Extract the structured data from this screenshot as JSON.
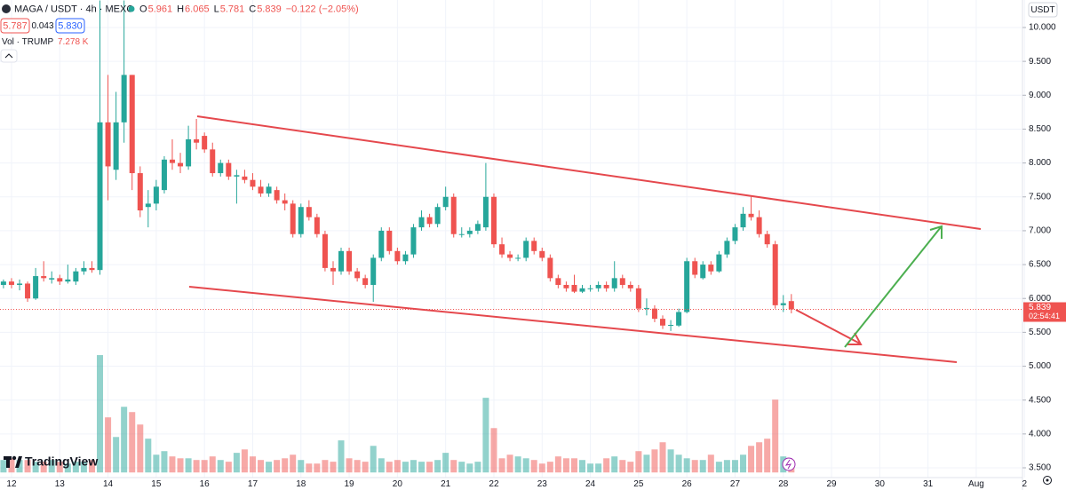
{
  "header": {
    "symbol": "MAGA / USDT · 4h · MEXC",
    "ohlc": [
      {
        "key": "O",
        "value": "5.961"
      },
      {
        "key": "H",
        "value": "6.065"
      },
      {
        "key": "L",
        "value": "5.781"
      },
      {
        "key": "C",
        "value": "5.839"
      }
    ],
    "change": "−0.122 (−2.05%)",
    "sell": "5.787",
    "spread": "0.043",
    "buy": "5.830",
    "volume_name": "Vol · TRUMP",
    "volume_value": "7.278 K",
    "currency": "USDT",
    "price_label": "5.839",
    "countdown": "02:54:41",
    "brand": "TradingView"
  },
  "chart_data": {
    "type": "candlestick",
    "x": [
      11.833,
      12,
      12.167,
      12.333,
      12.5,
      12.667,
      12.833,
      13,
      13.167,
      13.333,
      13.5,
      13.667,
      13.833,
      14,
      14.167,
      14.333,
      14.5,
      14.667,
      14.833,
      15,
      15.167,
      15.333,
      15.5,
      15.667,
      15.833,
      16,
      16.167,
      16.333,
      16.5,
      16.667,
      16.833,
      17,
      17.167,
      17.333,
      17.5,
      17.667,
      17.833,
      18,
      18.167,
      18.333,
      18.5,
      18.667,
      18.833,
      19,
      19.167,
      19.333,
      19.5,
      19.667,
      19.833,
      20,
      20.167,
      20.333,
      20.5,
      20.667,
      20.833,
      21,
      21.167,
      21.333,
      21.5,
      21.667,
      21.833,
      22,
      22.167,
      22.333,
      22.5,
      22.667,
      22.833,
      23,
      23.167,
      23.333,
      23.5,
      23.667,
      23.833,
      24,
      24.167,
      24.333,
      24.5,
      24.667,
      24.833,
      25,
      25.167,
      25.333,
      25.5,
      25.667,
      25.833,
      26,
      26.167,
      26.333,
      26.5,
      26.667,
      26.833,
      27,
      27.167,
      27.333,
      27.5,
      27.667,
      27.833,
      28,
      28.167
    ],
    "open": [
      6.2,
      6.25,
      6.2,
      6.22,
      6.0,
      6.33,
      6.28,
      6.3,
      6.25,
      6.25,
      6.4,
      6.45,
      6.42,
      8.6,
      7.9,
      8.6,
      9.3,
      7.85,
      7.35,
      7.4,
      7.6,
      8.05,
      8.0,
      7.95,
      8.35,
      8.4,
      8.2,
      7.85,
      8.0,
      7.8,
      7.8,
      7.75,
      7.65,
      7.55,
      7.6,
      7.45,
      7.4,
      6.95,
      7.35,
      7.2,
      6.95,
      6.45,
      6.4,
      6.7,
      6.4,
      6.3,
      6.2,
      6.6,
      7.0,
      6.7,
      6.55,
      6.65,
      7.05,
      7.2,
      7.1,
      7.35,
      7.5,
      6.95,
      6.95,
      7.0,
      7.05,
      7.5,
      6.8,
      6.65,
      6.6,
      6.6,
      6.85,
      6.7,
      6.6,
      6.3,
      6.2,
      6.2,
      6.1,
      6.15,
      6.15,
      6.2,
      6.15,
      6.3,
      6.2,
      6.15,
      5.85,
      5.85,
      5.7,
      5.6,
      5.6,
      5.8,
      6.55,
      6.3,
      6.5,
      6.4,
      6.65,
      6.85,
      7.05,
      7.25,
      7.2,
      6.95,
      6.8,
      5.9,
      5.961
    ],
    "high": [
      6.28,
      6.3,
      6.28,
      6.25,
      6.45,
      6.55,
      6.4,
      6.35,
      6.5,
      6.45,
      6.55,
      6.55,
      10.4,
      9.3,
      9.05,
      10.4,
      9.3,
      7.95,
      7.6,
      7.75,
      8.1,
      8.35,
      8.15,
      8.55,
      8.65,
      8.45,
      8.3,
      8.05,
      8.05,
      7.9,
      7.9,
      7.85,
      7.75,
      7.7,
      7.65,
      7.55,
      7.45,
      7.4,
      7.45,
      7.25,
      7.0,
      6.55,
      6.75,
      6.75,
      6.45,
      6.35,
      6.65,
      7.05,
      7.05,
      6.75,
      6.7,
      7.1,
      7.3,
      7.25,
      7.4,
      7.65,
      7.55,
      7.05,
      7.05,
      7.15,
      8.0,
      7.55,
      6.9,
      6.7,
      6.65,
      6.9,
      6.9,
      6.75,
      6.65,
      6.35,
      6.25,
      6.35,
      6.2,
      6.2,
      6.25,
      6.25,
      6.55,
      6.35,
      6.25,
      6.2,
      6.0,
      5.9,
      5.75,
      5.68,
      5.85,
      6.6,
      6.6,
      6.55,
      6.55,
      6.7,
      6.9,
      7.1,
      7.35,
      7.5,
      7.3,
      7.0,
      6.85,
      6.05,
      6.065
    ],
    "low": [
      6.15,
      6.15,
      6.12,
      5.95,
      5.98,
      6.25,
      6.22,
      6.2,
      6.22,
      6.2,
      6.35,
      6.38,
      6.35,
      7.45,
      7.75,
      8.3,
      7.6,
      7.2,
      7.05,
      7.3,
      7.55,
      7.9,
      7.85,
      7.9,
      8.2,
      8.15,
      7.8,
      7.8,
      7.75,
      7.4,
      7.7,
      7.6,
      7.5,
      7.5,
      7.4,
      7.3,
      6.9,
      6.9,
      7.15,
      6.9,
      6.4,
      6.2,
      6.35,
      6.35,
      6.25,
      6.15,
      5.95,
      6.55,
      6.65,
      6.5,
      6.5,
      6.6,
      7.0,
      7.05,
      7.05,
      7.3,
      6.9,
      6.9,
      6.9,
      6.95,
      7.0,
      6.75,
      6.6,
      6.55,
      6.55,
      6.55,
      6.65,
      6.55,
      6.25,
      6.15,
      6.1,
      6.08,
      6.08,
      6.1,
      6.1,
      6.1,
      6.1,
      6.15,
      6.1,
      5.8,
      5.75,
      5.65,
      5.55,
      5.52,
      5.58,
      5.78,
      6.3,
      6.28,
      6.35,
      6.38,
      6.6,
      6.8,
      7.0,
      7.15,
      6.9,
      6.75,
      5.85,
      5.8,
      5.781
    ],
    "close": [
      6.25,
      6.2,
      6.22,
      6.0,
      6.33,
      6.3,
      6.3,
      6.25,
      6.28,
      6.4,
      6.45,
      6.42,
      8.6,
      7.95,
      8.6,
      9.3,
      7.85,
      7.3,
      7.4,
      7.65,
      8.05,
      8.0,
      7.95,
      8.35,
      8.3,
      8.2,
      7.85,
      8.0,
      7.8,
      7.82,
      7.75,
      7.65,
      7.55,
      7.65,
      7.45,
      7.4,
      6.95,
      7.35,
      7.2,
      6.95,
      6.45,
      6.4,
      6.7,
      6.4,
      6.3,
      6.2,
      6.6,
      7.0,
      6.7,
      6.55,
      6.65,
      7.05,
      7.2,
      7.1,
      7.35,
      7.5,
      6.95,
      6.95,
      7.0,
      7.1,
      7.5,
      6.8,
      6.65,
      6.6,
      6.6,
      6.85,
      6.7,
      6.6,
      6.3,
      6.2,
      6.15,
      6.1,
      6.15,
      6.15,
      6.2,
      6.15,
      6.3,
      6.2,
      6.15,
      5.85,
      5.86,
      5.7,
      5.6,
      5.61,
      5.8,
      6.55,
      6.35,
      6.5,
      6.4,
      6.65,
      6.85,
      7.05,
      7.25,
      7.2,
      6.95,
      6.8,
      5.9,
      5.93,
      5.839
    ],
    "volume": [
      7.3,
      8.3,
      7.3,
      7.3,
      6.3,
      6.3,
      7.3,
      6.3,
      5.2,
      6.3,
      6.3,
      7.3,
      68.8,
      32.3,
      20.8,
      38.5,
      35.4,
      28.1,
      19.8,
      10.4,
      12.5,
      9.4,
      8.3,
      8.3,
      7.3,
      7.3,
      9.4,
      7.3,
      6.3,
      11.5,
      13.5,
      9.4,
      7.3,
      6.3,
      7.3,
      8.3,
      10.4,
      7.3,
      5.2,
      5.2,
      7.3,
      6.3,
      18.8,
      8.3,
      7.3,
      6.3,
      15.6,
      8.3,
      6.3,
      7.3,
      6.3,
      7.3,
      6.3,
      6.3,
      7.3,
      11.5,
      7.3,
      6.3,
      5.2,
      6.3,
      43.8,
      26,
      8.3,
      10.4,
      9.4,
      8.3,
      7.3,
      5.2,
      6.3,
      9.4,
      8.3,
      8.3,
      7.3,
      5.2,
      5.2,
      8.3,
      9.4,
      7.3,
      6.3,
      12.5,
      10.4,
      13.5,
      17.7,
      13.5,
      10.4,
      8.3,
      7.3,
      7.3,
      10.4,
      6.3,
      7.3,
      7.3,
      10.4,
      15.6,
      17.7,
      19.8,
      42.7,
      9.4,
      7.278
    ],
    "colors": {
      "up": "#26a69a",
      "down": "#ef5350"
    },
    "volume_colors": {
      "up": "rgba(38,166,154,0.5)",
      "down": "rgba(239,83,80,0.5)"
    },
    "xlim": [
      11.761,
      32.94
    ],
    "xticks": [
      12,
      13,
      14,
      15,
      16,
      17,
      18,
      19,
      20,
      21,
      22,
      23,
      24,
      25,
      26,
      27,
      28,
      29,
      30,
      31,
      {
        "value": 32,
        "label": "Aug"
      },
      {
        "value": 33,
        "label": "2"
      }
    ],
    "ylim": [
      3.356,
      10.406
    ],
    "yticks": [
      {
        "value": 3.5,
        "label": "3.500"
      },
      {
        "value": 4,
        "label": "4.000"
      },
      {
        "value": 4.5,
        "label": "4.500"
      },
      {
        "value": 5,
        "label": "5.000"
      },
      {
        "value": 5.5,
        "label": "5.500"
      },
      {
        "value": 6,
        "label": "6.000"
      },
      {
        "value": 6.5,
        "label": "6.500"
      },
      {
        "value": 7,
        "label": "7.000"
      },
      {
        "value": 7.5,
        "label": "7.500"
      },
      {
        "value": 8,
        "label": "8.000"
      },
      {
        "value": 8.5,
        "label": "8.500"
      },
      {
        "value": 9,
        "label": "9.000"
      },
      {
        "value": 9.5,
        "label": "9.500"
      },
      {
        "value": 10,
        "label": "10.000"
      }
    ],
    "y2lim": [
      -3,
      277
    ],
    "grid": true
  }
}
